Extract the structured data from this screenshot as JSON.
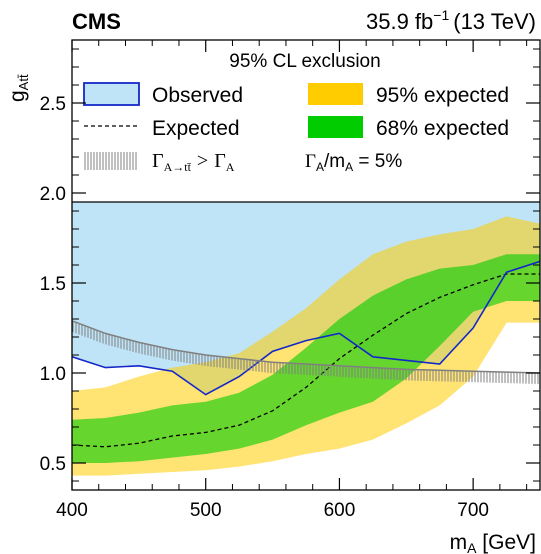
{
  "header": {
    "experiment": "CMS",
    "lumi_value": "35.9 fb",
    "lumi_exp": "−1",
    "lumi_energy": "(13 TeV)"
  },
  "legend": {
    "title": "95% CL exclusion",
    "observed": "Observed",
    "expected": "Expected",
    "band95": "95% expected",
    "band68": "68% expected",
    "unphysical": {
      "gamma": "Γ",
      "sub": "A→tt̄",
      "gt": ">",
      "gamma2": "Γ",
      "sub2": "A"
    },
    "width_ratio": {
      "gamma": "Γ",
      "sub": "A",
      "slash": "/m",
      "sub2": "A",
      "value": " = 5%"
    }
  },
  "colors": {
    "observed_fill": "#bfe3f7",
    "observed_line": "#1428c8",
    "band95": "#ffcc00",
    "band68": "#00cc00",
    "hatch": "#808080"
  },
  "chart_data": {
    "type": "line",
    "xlabel": "m_A [GeV]",
    "ylabel": "g_Att̄",
    "xlim": [
      400,
      750
    ],
    "ylim": [
      0.35,
      2.85
    ],
    "x_ticks": [
      400,
      500,
      600,
      700
    ],
    "y_ticks": [
      0.5,
      1.0,
      1.5,
      2.0,
      2.5
    ],
    "x_tick_labels": [
      "400",
      "500",
      "600",
      "700"
    ],
    "y_tick_labels": [
      "0.5",
      "1.0",
      "1.5",
      "2.0",
      "2.5"
    ],
    "x": [
      400,
      425,
      450,
      475,
      500,
      525,
      550,
      575,
      600,
      625,
      650,
      675,
      700,
      725,
      750
    ],
    "observed": [
      1.09,
      1.03,
      1.04,
      1.01,
      0.88,
      0.98,
      1.12,
      1.18,
      1.22,
      1.09,
      1.07,
      1.05,
      1.25,
      1.56,
      1.62
    ],
    "expected": [
      0.6,
      0.59,
      0.61,
      0.65,
      0.67,
      0.71,
      0.79,
      0.92,
      1.08,
      1.21,
      1.33,
      1.42,
      1.49,
      1.55,
      1.55
    ],
    "band68_low": [
      0.5,
      0.5,
      0.51,
      0.53,
      0.55,
      0.58,
      0.63,
      0.71,
      0.78,
      0.84,
      0.97,
      1.15,
      1.34,
      1.4,
      1.4
    ],
    "band68_high": [
      0.74,
      0.75,
      0.78,
      0.82,
      0.84,
      0.89,
      0.99,
      1.14,
      1.3,
      1.43,
      1.52,
      1.58,
      1.6,
      1.66,
      1.66
    ],
    "band95_low": [
      0.43,
      0.43,
      0.44,
      0.45,
      0.46,
      0.48,
      0.51,
      0.55,
      0.58,
      0.63,
      0.72,
      0.82,
      0.98,
      1.28,
      1.28
    ],
    "band95_high": [
      0.9,
      0.92,
      0.98,
      1.03,
      1.06,
      1.11,
      1.23,
      1.36,
      1.52,
      1.66,
      1.73,
      1.77,
      1.8,
      1.87,
      1.83
    ],
    "unphysical_boundary": {
      "x": [
        400,
        425,
        450,
        475,
        500,
        525,
        550,
        575,
        600,
        625,
        650,
        675,
        700,
        725,
        750
      ],
      "y": [
        1.29,
        1.22,
        1.17,
        1.13,
        1.1,
        1.08,
        1.06,
        1.05,
        1.04,
        1.03,
        1.02,
        1.015,
        1.01,
        1.005,
        1.0
      ]
    },
    "observed_excluded_upper": 1.95,
    "grid": false,
    "legend_position": "top"
  }
}
